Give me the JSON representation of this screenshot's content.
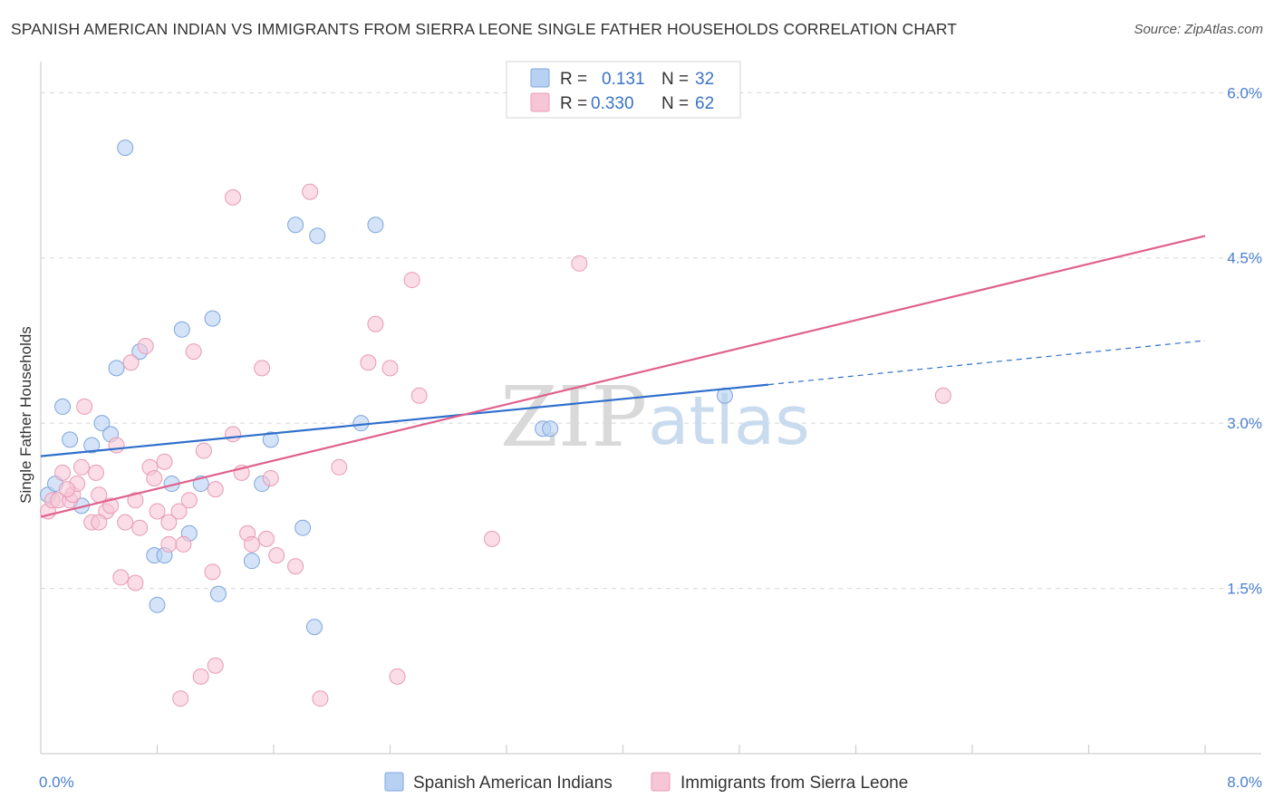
{
  "title": "SPANISH AMERICAN INDIAN VS IMMIGRANTS FROM SIERRA LEONE SINGLE FATHER HOUSEHOLDS CORRELATION CHART",
  "source": "Source: ZipAtlas.com",
  "watermark": {
    "zip": "ZIP",
    "atlas": "atlas"
  },
  "colors": {
    "blue_fill": "#b8d0f2",
    "blue_stroke": "#7ea6dc",
    "blue_line": "#2f6fcc",
    "pink_fill": "#f7c6d6",
    "pink_stroke": "#e89ab5",
    "pink_line": "#e0608e",
    "tick": "#4a7fd0",
    "grid": "#d8d8d8"
  },
  "legend": {
    "rows": [
      {
        "r_label": "R = ",
        "r_value": "0.131",
        "n_label": "N = ",
        "n_value": "32",
        "color": "blue"
      },
      {
        "r_label": "R = ",
        "r_value": "0.330",
        "n_label": "N = ",
        "n_value": "62",
        "color": "pink"
      }
    ]
  },
  "chart_data": {
    "type": "scatter",
    "title": "SPANISH AMERICAN INDIAN VS IMMIGRANTS FROM SIERRA LEONE SINGLE FATHER HOUSEHOLDS CORRELATION CHART",
    "xlabel": "",
    "ylabel": "Single Father Households",
    "xlim": [
      0,
      8.0
    ],
    "ylim": [
      0,
      6.2
    ],
    "x_tick_labels": [
      "0.0%",
      "8.0%"
    ],
    "y_ticks": [
      1.5,
      3.0,
      4.5,
      6.0
    ],
    "y_tick_labels": [
      "1.5%",
      "3.0%",
      "4.5%",
      "6.0%"
    ],
    "grid": "horizontal dashed",
    "series": [
      {
        "name": "Spanish American Indians",
        "color": "blue",
        "points": [
          [
            0.05,
            2.35
          ],
          [
            0.1,
            2.45
          ],
          [
            0.15,
            3.15
          ],
          [
            0.2,
            2.85
          ],
          [
            0.28,
            2.25
          ],
          [
            0.35,
            2.8
          ],
          [
            0.42,
            3.0
          ],
          [
            0.48,
            2.9
          ],
          [
            0.52,
            3.5
          ],
          [
            0.58,
            5.5
          ],
          [
            0.68,
            3.65
          ],
          [
            0.78,
            1.8
          ],
          [
            0.8,
            1.35
          ],
          [
            0.85,
            1.8
          ],
          [
            0.9,
            2.45
          ],
          [
            0.97,
            3.85
          ],
          [
            1.02,
            2.0
          ],
          [
            1.1,
            2.45
          ],
          [
            1.18,
            3.95
          ],
          [
            1.22,
            1.45
          ],
          [
            1.45,
            1.75
          ],
          [
            1.52,
            2.45
          ],
          [
            1.58,
            2.85
          ],
          [
            1.75,
            4.8
          ],
          [
            1.8,
            2.05
          ],
          [
            1.88,
            1.15
          ],
          [
            1.9,
            4.7
          ],
          [
            2.2,
            3.0
          ],
          [
            2.3,
            4.8
          ],
          [
            3.45,
            2.95
          ],
          [
            3.5,
            2.95
          ],
          [
            4.7,
            3.25
          ]
        ],
        "trend": {
          "x": [
            0.0,
            5.0
          ],
          "y": [
            2.7,
            3.35
          ],
          "dashed_extension": {
            "x": [
              5.0,
              8.0
            ],
            "y": [
              3.35,
              3.75
            ]
          }
        }
      },
      {
        "name": "Immigrants from Sierra Leone",
        "color": "pink",
        "points": [
          [
            0.05,
            2.2
          ],
          [
            0.08,
            2.3
          ],
          [
            0.12,
            2.3
          ],
          [
            0.15,
            2.55
          ],
          [
            0.2,
            2.3
          ],
          [
            0.22,
            2.35
          ],
          [
            0.25,
            2.45
          ],
          [
            0.28,
            2.6
          ],
          [
            0.3,
            3.15
          ],
          [
            0.35,
            2.1
          ],
          [
            0.38,
            2.55
          ],
          [
            0.4,
            2.35
          ],
          [
            0.45,
            2.2
          ],
          [
            0.48,
            2.25
          ],
          [
            0.52,
            2.8
          ],
          [
            0.55,
            1.6
          ],
          [
            0.58,
            2.1
          ],
          [
            0.62,
            3.55
          ],
          [
            0.65,
            2.3
          ],
          [
            0.68,
            2.05
          ],
          [
            0.72,
            3.7
          ],
          [
            0.75,
            2.6
          ],
          [
            0.78,
            2.5
          ],
          [
            0.8,
            2.2
          ],
          [
            0.85,
            2.65
          ],
          [
            0.88,
            1.9
          ],
          [
            0.88,
            2.1
          ],
          [
            0.95,
            2.2
          ],
          [
            0.98,
            1.9
          ],
          [
            1.02,
            2.3
          ],
          [
            1.05,
            3.65
          ],
          [
            1.1,
            0.7
          ],
          [
            1.12,
            2.75
          ],
          [
            1.18,
            1.65
          ],
          [
            1.2,
            2.4
          ],
          [
            1.32,
            2.9
          ],
          [
            1.38,
            2.55
          ],
          [
            1.42,
            2.0
          ],
          [
            1.45,
            1.9
          ],
          [
            1.52,
            3.5
          ],
          [
            1.55,
            1.95
          ],
          [
            1.58,
            2.5
          ],
          [
            1.62,
            1.8
          ],
          [
            1.75,
            1.7
          ],
          [
            1.85,
            5.1
          ],
          [
            1.92,
            0.5
          ],
          [
            2.05,
            2.6
          ],
          [
            2.25,
            3.55
          ],
          [
            2.3,
            3.9
          ],
          [
            2.4,
            3.5
          ],
          [
            2.45,
            0.7
          ],
          [
            2.55,
            4.3
          ],
          [
            2.6,
            3.25
          ],
          [
            3.1,
            1.95
          ],
          [
            3.7,
            4.45
          ],
          [
            6.2,
            3.25
          ],
          [
            0.96,
            0.5
          ],
          [
            1.2,
            0.8
          ],
          [
            1.32,
            5.05
          ],
          [
            0.4,
            2.1
          ],
          [
            0.65,
            1.55
          ],
          [
            0.18,
            2.4
          ]
        ],
        "trend": {
          "x": [
            0.0,
            8.0
          ],
          "y": [
            2.15,
            4.7
          ]
        }
      }
    ]
  }
}
